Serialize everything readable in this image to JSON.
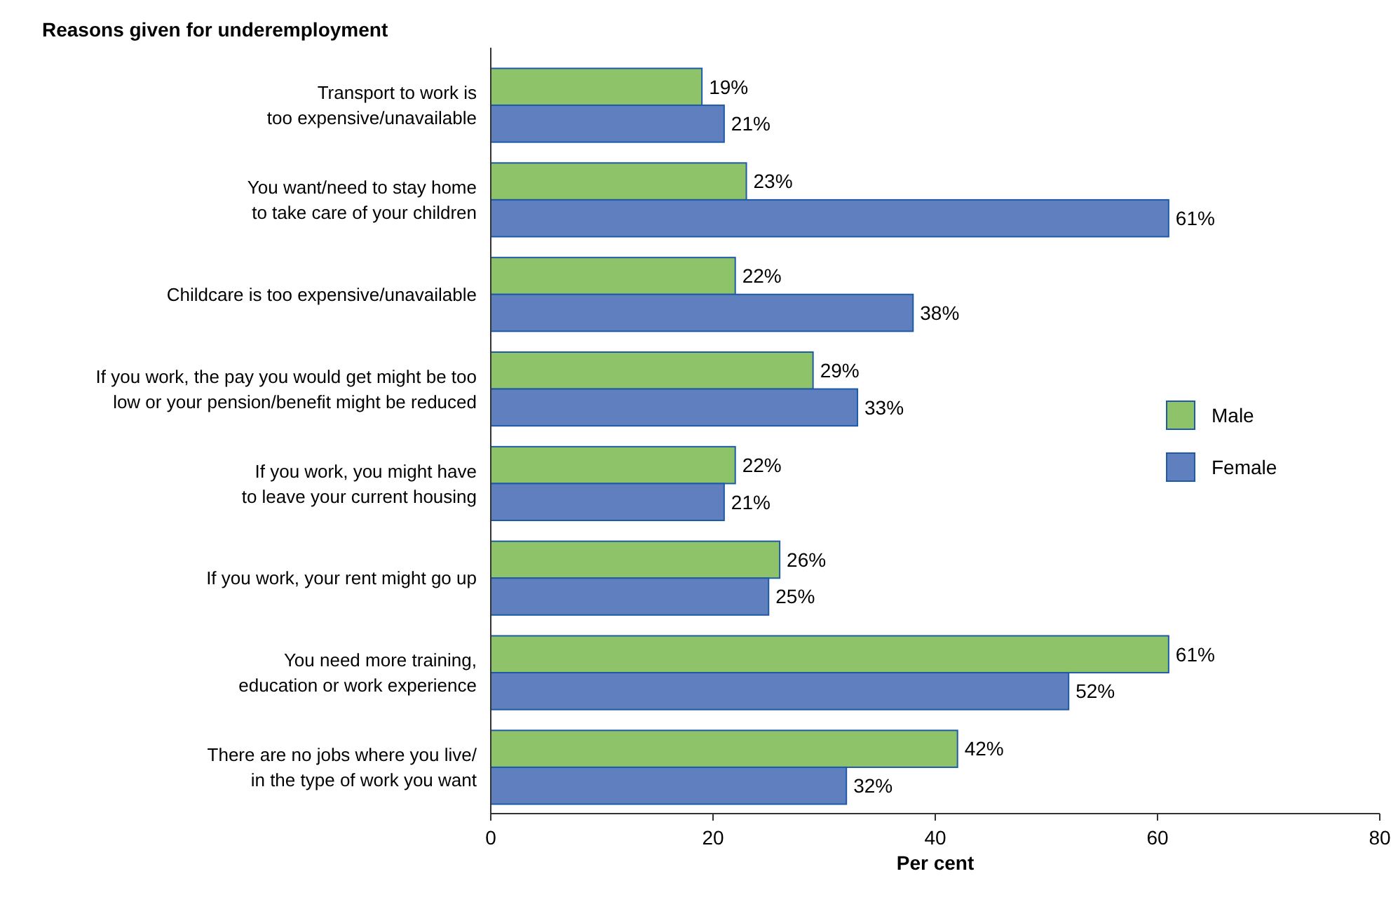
{
  "chart_data": {
    "type": "bar",
    "orientation": "horizontal",
    "title": "Reasons given for underemployment",
    "xlabel": "Per cent",
    "categories": [
      "Transport to work is\ntoo expensive/unavailable",
      "You want/need to stay home\nto take care of your children",
      "Childcare is too expensive/unavailable",
      "If you work, the pay you would get might be too\nlow or your pension/benefit might be reduced",
      "If you work, you might have\nto leave your current housing",
      "If you work, your rent might go up",
      "You need more training,\neducation or work experience",
      "There are no jobs where you live/\nin the type of work you want"
    ],
    "series": [
      {
        "name": "Male",
        "color": "#8fc36a",
        "values": [
          19,
          23,
          22,
          29,
          22,
          26,
          61,
          42
        ],
        "value_labels": [
          "19%",
          "23%",
          "22%",
          "29%",
          "22%",
          "26%",
          "61%",
          "42%"
        ]
      },
      {
        "name": "Female",
        "color": "#5f7fbf",
        "values": [
          21,
          61,
          38,
          33,
          21,
          25,
          52,
          32
        ],
        "value_labels": [
          "21%",
          "61%",
          "38%",
          "33%",
          "21%",
          "25%",
          "52%",
          "32%"
        ]
      }
    ],
    "xlim": [
      0,
      80
    ],
    "xticks": [
      0,
      20,
      40,
      60,
      80
    ],
    "grid": false,
    "legend": "right"
  }
}
